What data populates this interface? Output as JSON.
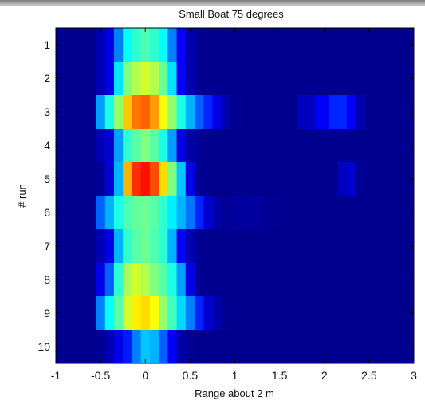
{
  "chart_data": {
    "type": "heatmap",
    "title": "Small Boat 75 degrees",
    "xlabel": "Range about 2 m",
    "ylabel": "# run",
    "xlim": [
      -1,
      3
    ],
    "ylim": [
      0.5,
      10.5
    ],
    "x_ticks": [
      "-1",
      "-0.5",
      "0",
      "0.5",
      "1",
      "1.5",
      "2",
      "2.5",
      "3"
    ],
    "y_ticks": [
      "1",
      "2",
      "3",
      "4",
      "5",
      "6",
      "7",
      "8",
      "9",
      "10"
    ],
    "x_tick_values": [
      -1,
      -0.5,
      0,
      0.5,
      1,
      1.5,
      2,
      2.5,
      3
    ],
    "colormap": "jet",
    "background_color": "#00008f",
    "grid": false,
    "x_centers": [
      -0.5,
      -0.4,
      -0.3,
      -0.2,
      -0.1,
      0,
      0.1,
      0.2,
      0.3,
      0.4,
      0.5,
      0.6,
      0.7,
      0.8,
      0.9,
      1.0,
      1.2,
      1.4,
      1.6,
      1.8,
      2.0,
      2.1,
      2.2,
      2.3,
      2.4
    ],
    "runs": [
      1,
      2,
      3,
      4,
      5,
      6,
      7,
      8,
      9,
      10
    ],
    "intensity": [
      [
        0.05,
        0.1,
        0.25,
        0.38,
        0.42,
        0.45,
        0.42,
        0.38,
        0.25,
        0.12,
        0.05,
        0.02,
        0,
        0,
        0,
        0,
        0,
        0,
        0,
        0,
        0,
        0,
        0,
        0,
        0
      ],
      [
        0.05,
        0.1,
        0.35,
        0.5,
        0.55,
        0.58,
        0.55,
        0.48,
        0.35,
        0.12,
        0.05,
        0.02,
        0,
        0,
        0,
        0,
        0,
        0,
        0,
        0,
        0,
        0,
        0,
        0,
        0
      ],
      [
        0.28,
        0.4,
        0.52,
        0.68,
        0.76,
        0.78,
        0.72,
        0.62,
        0.52,
        0.4,
        0.3,
        0.22,
        0.16,
        0.1,
        0.05,
        0.02,
        0,
        0,
        0,
        0.06,
        0.12,
        0.16,
        0.16,
        0.12,
        0.05
      ],
      [
        0.05,
        0.08,
        0.28,
        0.42,
        0.46,
        0.5,
        0.46,
        0.4,
        0.28,
        0.1,
        0.04,
        0.02,
        0,
        0,
        0,
        0,
        0,
        0,
        0,
        0,
        0,
        0,
        0,
        0,
        0
      ],
      [
        0.02,
        0.08,
        0.3,
        0.7,
        0.83,
        0.86,
        0.8,
        0.66,
        0.5,
        0.32,
        0.1,
        0.02,
        0,
        0,
        0,
        0,
        0,
        0,
        0,
        0,
        0,
        0,
        0.06,
        0.08,
        0.02
      ],
      [
        0.22,
        0.3,
        0.4,
        0.45,
        0.47,
        0.48,
        0.46,
        0.42,
        0.36,
        0.3,
        0.24,
        0.16,
        0.08,
        0.04,
        0.02,
        0.03,
        0.03,
        0.02,
        0,
        0,
        0,
        0,
        0,
        0,
        0
      ],
      [
        0.05,
        0.1,
        0.3,
        0.42,
        0.46,
        0.48,
        0.45,
        0.42,
        0.3,
        0.12,
        0.05,
        0.02,
        0,
        0,
        0,
        0,
        0,
        0,
        0,
        0,
        0,
        0,
        0,
        0,
        0
      ],
      [
        0.1,
        0.22,
        0.42,
        0.54,
        0.58,
        0.55,
        0.5,
        0.46,
        0.4,
        0.28,
        0.1,
        0.02,
        0,
        0,
        0,
        0,
        0,
        0,
        0,
        0,
        0,
        0,
        0,
        0,
        0
      ],
      [
        0.25,
        0.38,
        0.46,
        0.58,
        0.64,
        0.66,
        0.62,
        0.52,
        0.44,
        0.34,
        0.25,
        0.16,
        0.08,
        0.04,
        0.02,
        0,
        0,
        0,
        0,
        0,
        0,
        0,
        0,
        0,
        0
      ],
      [
        0.02,
        0.05,
        0.1,
        0.15,
        0.25,
        0.32,
        0.3,
        0.22,
        0.12,
        0.04,
        0.02,
        0,
        0,
        0,
        0,
        0,
        0,
        0,
        0,
        0,
        0,
        0,
        0,
        0,
        0
      ]
    ]
  }
}
